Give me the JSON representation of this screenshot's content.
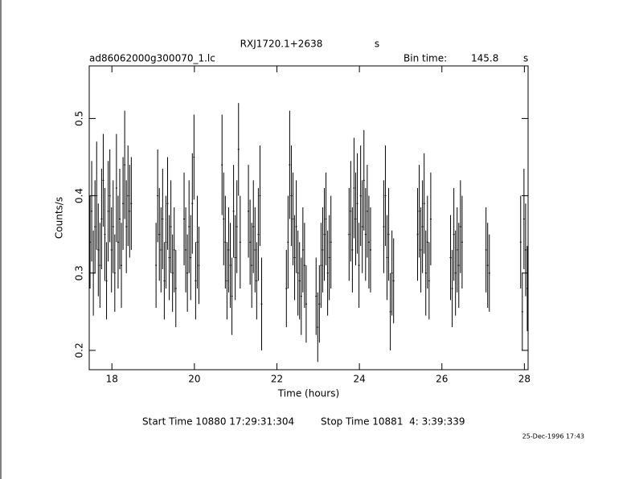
{
  "chart_data": {
    "type": "errorbar",
    "title": "RXJ1720.1+2638",
    "title_unit": "s",
    "subtitle": "ad86062000g300070_1.lc",
    "bin_time_label": "Bin time:",
    "bin_time": 145.8,
    "bin_time_unit": "s",
    "xlabel": "Time (hours)",
    "ylabel": "Counts/s",
    "start_time": "Start Time 10880 17:29:31:304",
    "stop_time": "Stop Time 10881  4: 3:39:339",
    "timestamp": "25-Dec-1996 17:43",
    "color": "#000000",
    "xlim": [
      17.45,
      28.09
    ],
    "ylim": [
      0.175,
      0.568
    ],
    "xticks": [
      18,
      20,
      22,
      24,
      26,
      28
    ],
    "yticks": [
      0.2,
      0.3,
      0.4,
      0.5
    ],
    "x": [
      17.47,
      17.51,
      17.55,
      17.59,
      17.63,
      17.67,
      17.71,
      17.75,
      17.79,
      17.83,
      17.87,
      17.91,
      17.95,
      17.99,
      18.03,
      18.07,
      18.11,
      18.15,
      18.19,
      18.23,
      18.27,
      18.31,
      18.35,
      18.39,
      18.43,
      18.47,
      19.07,
      19.11,
      19.15,
      19.19,
      19.23,
      19.27,
      19.31,
      19.35,
      19.39,
      19.43,
      19.47,
      19.51,
      19.55,
      19.75,
      19.79,
      19.83,
      19.87,
      19.91,
      19.95,
      19.99,
      20.03,
      20.07,
      20.11,
      20.67,
      20.71,
      20.75,
      20.79,
      20.83,
      20.87,
      20.91,
      20.95,
      20.99,
      21.03,
      21.07,
      21.11,
      21.31,
      21.35,
      21.39,
      21.43,
      21.47,
      21.51,
      21.55,
      21.59,
      21.63,
      22.23,
      22.27,
      22.31,
      22.35,
      22.39,
      22.43,
      22.47,
      22.51,
      22.55,
      22.59,
      22.63,
      22.67,
      22.71,
      22.95,
      22.99,
      23.03,
      23.07,
      23.11,
      23.15,
      23.19,
      23.23,
      23.27,
      23.31,
      23.75,
      23.79,
      23.83,
      23.87,
      23.91,
      23.95,
      23.99,
      24.03,
      24.07,
      24.11,
      24.15,
      24.19,
      24.23,
      24.27,
      24.59,
      24.63,
      24.67,
      24.71,
      24.75,
      24.79,
      24.83,
      25.41,
      25.45,
      25.49,
      25.53,
      25.57,
      25.61,
      25.65,
      25.69,
      25.73,
      26.21,
      26.25,
      26.29,
      26.33,
      26.37,
      26.41,
      26.45,
      26.49,
      27.07,
      27.11,
      27.15,
      27.91,
      27.95,
      27.99,
      28.03,
      28.07
    ],
    "values": [
      0.34,
      0.38,
      0.3,
      0.36,
      0.4,
      0.33,
      0.31,
      0.37,
      0.42,
      0.35,
      0.29,
      0.38,
      0.4,
      0.33,
      0.36,
      0.3,
      0.41,
      0.34,
      0.37,
      0.31,
      0.39,
      0.44,
      0.36,
      0.4,
      0.38,
      0.39,
      0.31,
      0.4,
      0.35,
      0.33,
      0.37,
      0.29,
      0.34,
      0.39,
      0.32,
      0.36,
      0.3,
      0.33,
      0.28,
      0.37,
      0.33,
      0.3,
      0.36,
      0.32,
      0.39,
      0.45,
      0.29,
      0.34,
      0.31,
      0.44,
      0.37,
      0.34,
      0.29,
      0.33,
      0.31,
      0.27,
      0.38,
      0.32,
      0.36,
      0.46,
      0.34,
      0.38,
      0.34,
      0.31,
      0.36,
      0.33,
      0.29,
      0.35,
      0.4,
      0.26,
      0.28,
      0.34,
      0.44,
      0.4,
      0.37,
      0.32,
      0.36,
      0.3,
      0.29,
      0.27,
      0.33,
      0.31,
      0.26,
      0.27,
      0.23,
      0.26,
      0.31,
      0.33,
      0.35,
      0.37,
      0.3,
      0.32,
      0.34,
      0.35,
      0.38,
      0.33,
      0.41,
      0.37,
      0.39,
      0.31,
      0.4,
      0.36,
      0.42,
      0.35,
      0.38,
      0.34,
      0.33,
      0.36,
      0.4,
      0.32,
      0.35,
      0.25,
      0.3,
      0.29,
      0.35,
      0.38,
      0.33,
      0.36,
      0.39,
      0.3,
      0.34,
      0.29,
      0.37,
      0.32,
      0.28,
      0.35,
      0.3,
      0.33,
      0.31,
      0.36,
      0.34,
      0.33,
      0.31,
      0.3,
      0.34,
      0.25,
      0.37,
      0.33,
      0.28
    ],
    "errors": [
      0.06,
      0.065,
      0.055,
      0.06,
      0.07,
      0.06,
      0.055,
      0.065,
      0.06,
      0.06,
      0.05,
      0.065,
      0.06,
      0.055,
      0.06,
      0.05,
      0.07,
      0.06,
      0.065,
      0.055,
      0.06,
      0.07,
      0.06,
      0.065,
      0.06,
      0.06,
      0.055,
      0.06,
      0.06,
      0.055,
      0.065,
      0.05,
      0.06,
      0.06,
      0.055,
      0.06,
      0.05,
      0.055,
      0.05,
      0.06,
      0.055,
      0.05,
      0.06,
      0.055,
      0.065,
      0.055,
      0.05,
      0.06,
      0.05,
      0.065,
      0.06,
      0.06,
      0.05,
      0.055,
      0.055,
      0.05,
      0.06,
      0.055,
      0.06,
      0.06,
      0.06,
      0.06,
      0.055,
      0.055,
      0.06,
      0.055,
      0.05,
      0.06,
      0.065,
      0.06,
      0.05,
      0.06,
      0.07,
      0.065,
      0.06,
      0.055,
      0.06,
      0.055,
      0.05,
      0.05,
      0.055,
      0.055,
      0.05,
      0.05,
      0.045,
      0.05,
      0.055,
      0.055,
      0.06,
      0.06,
      0.055,
      0.055,
      0.06,
      0.06,
      0.065,
      0.055,
      0.065,
      0.06,
      0.065,
      0.055,
      0.065,
      0.06,
      0.065,
      0.06,
      0.06,
      0.06,
      0.055,
      0.06,
      0.065,
      0.055,
      0.06,
      0.05,
      0.055,
      0.055,
      0.06,
      0.06,
      0.055,
      0.06,
      0.065,
      0.055,
      0.06,
      0.05,
      0.06,
      0.055,
      0.05,
      0.06,
      0.055,
      0.055,
      0.055,
      0.06,
      0.06,
      0.055,
      0.055,
      0.05,
      0.06,
      0.05,
      0.065,
      0.06,
      0.055
    ]
  }
}
